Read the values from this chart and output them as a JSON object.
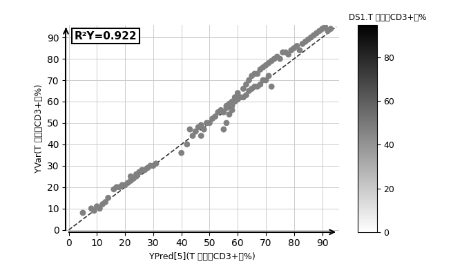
{
  "xlabel": "YPred[5](T 细胞（CD3+）%)",
  "ylabel": "YVar(T 细胞（CD3+）%)",
  "colorbar_label": "DS1.T 细胞（CD3+）%",
  "annotation": "R²Y=0.922",
  "xlim": [
    -1,
    96
  ],
  "ylim": [
    -1,
    96
  ],
  "xticks": [
    0,
    10,
    20,
    30,
    40,
    50,
    60,
    70,
    80,
    90
  ],
  "yticks": [
    0,
    10,
    20,
    30,
    40,
    50,
    60,
    70,
    80,
    90
  ],
  "scatter_x": [
    5,
    8,
    9,
    10,
    11,
    12,
    13,
    14,
    16,
    17,
    18,
    19,
    20,
    21,
    22,
    22,
    23,
    24,
    24,
    25,
    26,
    27,
    28,
    29,
    30,
    31,
    40,
    42,
    43,
    44,
    45,
    46,
    47,
    47,
    48,
    49,
    50,
    51,
    52,
    53,
    54,
    55,
    56,
    57,
    58,
    59,
    55,
    56,
    57,
    58,
    59,
    60,
    61,
    62,
    63,
    64,
    65,
    66,
    67,
    68,
    69,
    70,
    71,
    72,
    56,
    58,
    60,
    62,
    63,
    64,
    65,
    66,
    67,
    68,
    69,
    70,
    71,
    72,
    73,
    74,
    75,
    76,
    77,
    78,
    79,
    80,
    81,
    82,
    83,
    84,
    85,
    86,
    87,
    88,
    89,
    90,
    91,
    92,
    93
  ],
  "scatter_y": [
    8,
    10,
    9,
    11,
    10,
    12,
    13,
    15,
    19,
    20,
    20,
    21,
    21,
    22,
    23,
    25,
    24,
    25,
    26,
    27,
    28,
    28,
    29,
    30,
    30,
    31,
    36,
    40,
    47,
    44,
    46,
    48,
    44,
    49,
    47,
    50,
    50,
    52,
    53,
    55,
    56,
    55,
    58,
    59,
    58,
    62,
    47,
    50,
    54,
    56,
    60,
    61,
    62,
    62,
    63,
    65,
    66,
    67,
    67,
    68,
    70,
    70,
    72,
    67,
    57,
    60,
    64,
    66,
    68,
    70,
    72,
    73,
    73,
    75,
    76,
    77,
    78,
    79,
    80,
    81,
    80,
    83,
    83,
    82,
    84,
    85,
    86,
    84,
    87,
    88,
    89,
    90,
    91,
    92,
    93,
    94,
    95,
    93,
    94
  ],
  "point_color": "#808080",
  "point_size": 40,
  "line_color": "#333333",
  "grid_color": "#cccccc",
  "colorbar_ticks": [
    0,
    20,
    40,
    60,
    80
  ],
  "colorbar_max": 95,
  "colorbar_min": 0
}
